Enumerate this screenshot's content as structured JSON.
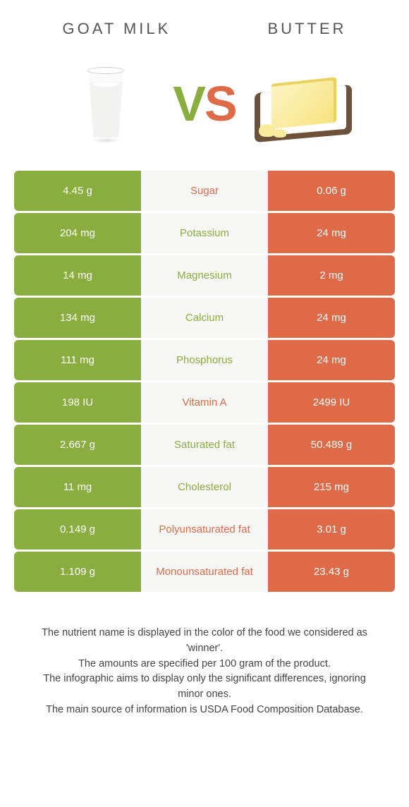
{
  "title_left": "GOAT MILK",
  "title_right": "BUTTER",
  "vs": {
    "v": "V",
    "s": "S"
  },
  "colors": {
    "left": "#8aad3f",
    "right": "#de6a48",
    "left_text": "#ffffff",
    "right_text": "#ffffff",
    "mid_bg": "#f7f7f5",
    "winner_left_color": "#8aad3f",
    "winner_right_color": "#de6a48"
  },
  "rows": [
    {
      "left": "4.45 g",
      "name": "Sugar",
      "right": "0.06 g",
      "winner": "right"
    },
    {
      "left": "204 mg",
      "name": "Potassium",
      "right": "24 mg",
      "winner": "left"
    },
    {
      "left": "14 mg",
      "name": "Magnesium",
      "right": "2 mg",
      "winner": "left"
    },
    {
      "left": "134 mg",
      "name": "Calcium",
      "right": "24 mg",
      "winner": "left"
    },
    {
      "left": "111 mg",
      "name": "Phosphorus",
      "right": "24 mg",
      "winner": "left"
    },
    {
      "left": "198 IU",
      "name": "Vitamin A",
      "right": "2499 IU",
      "winner": "right"
    },
    {
      "left": "2.667 g",
      "name": "Saturated fat",
      "right": "50.489 g",
      "winner": "left"
    },
    {
      "left": "11 mg",
      "name": "Cholesterol",
      "right": "215 mg",
      "winner": "left"
    },
    {
      "left": "0.149 g",
      "name": "Polyunsaturated fat",
      "right": "3.01 g",
      "winner": "right"
    },
    {
      "left": "1.109 g",
      "name": "Monounsaturated fat",
      "right": "23.43 g",
      "winner": "right"
    }
  ],
  "footer": [
    "The nutrient name is displayed in the color of the food we considered as 'winner'.",
    "The amounts are specified per 100 gram of the product.",
    "The infographic aims to display only the significant differences, ignoring minor ones.",
    "The main source of information is USDA Food Composition Database."
  ]
}
